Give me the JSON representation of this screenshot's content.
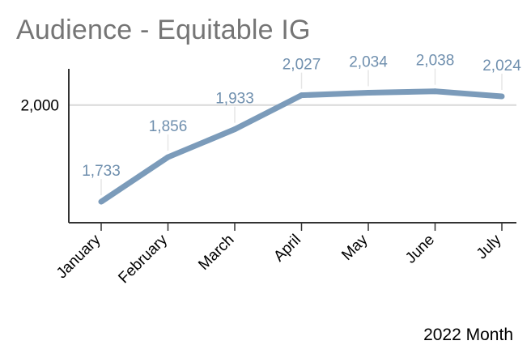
{
  "chart_data": {
    "type": "line",
    "title": "Audience - Equitable IG",
    "xlabel": "2022 Month",
    "ylabel": "",
    "categories": [
      "January",
      "February",
      "March",
      "April",
      "May",
      "June",
      "July"
    ],
    "series": [
      {
        "values": [
          1733,
          1856,
          1933,
          2027,
          2034,
          2038,
          2024
        ]
      }
    ],
    "data_labels": [
      "1,733",
      "1,856",
      "1,933",
      "2,027",
      "2,034",
      "2,038",
      "2,024"
    ],
    "ylim": [
      1675,
      2100
    ],
    "y_ticks": [
      2000
    ],
    "y_tick_labels": [
      "2,000"
    ],
    "grid": true,
    "legend": "none",
    "colors": {
      "line": "#7b9bba",
      "data_label": "#6f8fae",
      "axis": "#333333",
      "gridline": "#d9d9d9",
      "title": "#757575"
    }
  }
}
